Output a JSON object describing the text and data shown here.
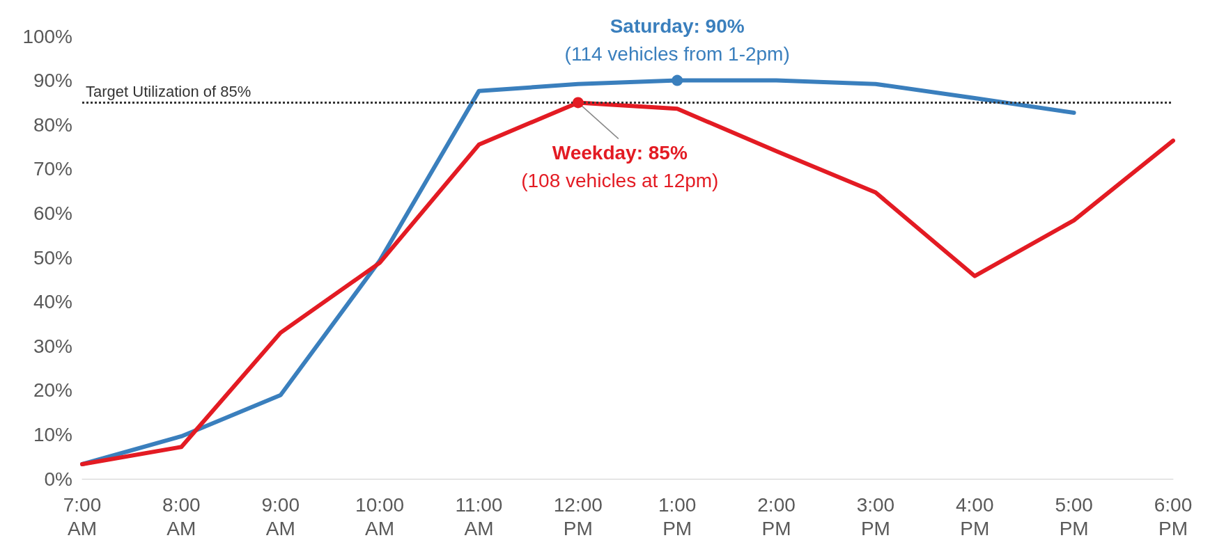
{
  "chart_data": {
    "type": "line",
    "categories": [
      "7:00 AM",
      "8:00 AM",
      "9:00 AM",
      "10:00 AM",
      "11:00 AM",
      "12:00 PM",
      "1:00 PM",
      "2:00 PM",
      "3:00 PM",
      "4:00 PM",
      "5:00 PM",
      "6:00 PM"
    ],
    "series": [
      {
        "color": "#3a7fbd",
        "values": [
          3.3,
          9.6,
          18.9,
          49.3,
          87.6,
          89.2,
          90,
          90,
          89.2,
          86,
          82.7,
          null
        ]
      },
      {
        "color": "#e31b23",
        "values": [
          3.3,
          7.2,
          33,
          48.8,
          75.5,
          85,
          83.6,
          74,
          64.7,
          45.8,
          58.4,
          76.4
        ]
      }
    ],
    "ylim": [
      0,
      100
    ],
    "yticks": [
      {
        "value": 0,
        "label": "0%"
      },
      {
        "value": 10,
        "label": "10%"
      },
      {
        "value": 20,
        "label": "20%"
      },
      {
        "value": 30,
        "label": "30%"
      },
      {
        "value": 40,
        "label": "40%"
      },
      {
        "value": 50,
        "label": "50%"
      },
      {
        "value": 60,
        "label": "60%"
      },
      {
        "value": 70,
        "label": "70%"
      },
      {
        "value": 80,
        "label": "80%"
      },
      {
        "value": 90,
        "label": "90%"
      },
      {
        "value": 100,
        "label": "100%"
      }
    ],
    "ref_lines": [
      {
        "axis": "y",
        "value": 85,
        "label": "Target Utilization of 85%",
        "color": "#333333",
        "line_style": "dotted"
      }
    ],
    "annotations": [
      {
        "text": "Saturday: 90%",
        "x": "1:00 PM",
        "y": 90
      },
      "(114 vehicles from 1-2pm)",
      {
        "text": "Weekday: 85%",
        "x": "12:00 PM",
        "y": 85
      },
      "(108 vehicles at 12pm)"
    ]
  }
}
